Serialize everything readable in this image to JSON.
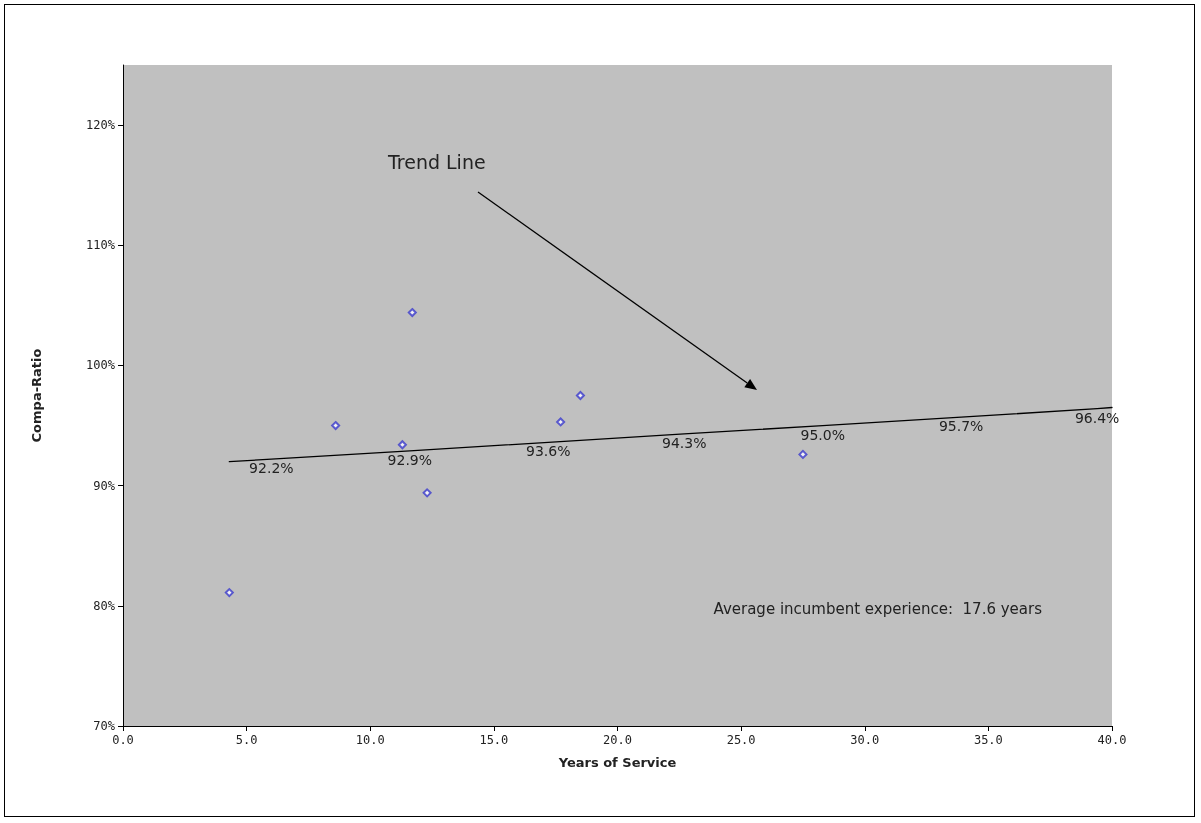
{
  "chart_data": {
    "type": "scatter",
    "xlabel": "Years of Service",
    "ylabel": "Compa-Ratio",
    "xlim": [
      0,
      40
    ],
    "xticks": [
      {
        "value": 0,
        "label": "0.0"
      },
      {
        "value": 5,
        "label": "5.0"
      },
      {
        "value": 10,
        "label": "10.0"
      },
      {
        "value": 15,
        "label": "15.0"
      },
      {
        "value": 20,
        "label": "20.0"
      },
      {
        "value": 25,
        "label": "25.0"
      },
      {
        "value": 30,
        "label": "30.0"
      },
      {
        "value": 35,
        "label": "35.0"
      },
      {
        "value": 40,
        "label": "40.0"
      }
    ],
    "ylim": [
      70,
      125
    ],
    "yticks": [
      {
        "value": 70,
        "label": "70%"
      },
      {
        "value": 80,
        "label": "80%"
      },
      {
        "value": 90,
        "label": "90%"
      },
      {
        "value": 100,
        "label": "100%"
      },
      {
        "value": 110,
        "label": "110%"
      },
      {
        "value": 120,
        "label": "120%"
      }
    ],
    "grid": false,
    "marker": "diamond",
    "series": [
      {
        "color": "#3a3acc",
        "x": [
          4.3,
          8.6,
          11.3,
          11.7,
          12.3,
          17.7,
          18.5,
          27.5
        ],
        "values": [
          81.1,
          95.0,
          93.4,
          104.4,
          89.4,
          95.3,
          97.5,
          92.6
        ]
      },
      {
        "type": "line",
        "color": "#000000",
        "marker": "none",
        "line_style": "solid",
        "x": [
          4.3,
          6.0,
          11.6,
          17.2,
          22.7,
          28.3,
          33.9,
          39.4,
          40
        ],
        "values": [
          92.0,
          92.2,
          92.9,
          93.6,
          94.3,
          95.0,
          95.7,
          96.4,
          96.5
        ],
        "value_labels": [
          null,
          "92.2%",
          "92.9%",
          "93.6%",
          "94.3%",
          "95.0%",
          "95.7%",
          "96.4%",
          null
        ]
      }
    ],
    "annotations": [
      "Trend Line",
      "Average incumbent experience:  17.6 years"
    ]
  }
}
